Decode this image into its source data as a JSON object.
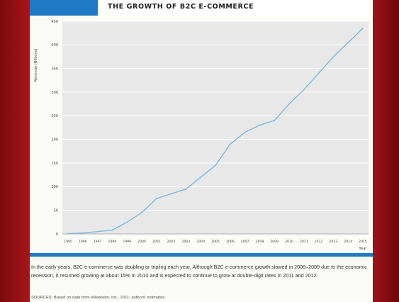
{
  "slide": {
    "colors": {
      "background": "#5c0508",
      "band": "#a8151a",
      "accent_blue": "#1f79c4",
      "plot_background": "#e8e8e8",
      "line": "#7ab8e0"
    }
  },
  "header": {
    "title": "THE GROWTH OF B2C E-COMMERCE"
  },
  "chart_data": {
    "type": "line",
    "title": "THE GROWTH OF B2C E-COMMERCE",
    "xlabel": "Year",
    "ylabel": "Revenue (Billions)",
    "ylim": [
      0,
      450
    ],
    "yticks": [
      0,
      50,
      100,
      150,
      200,
      250,
      300,
      350,
      400,
      450
    ],
    "xlim": [
      1995,
      2015
    ],
    "x": [
      1995,
      1996,
      1997,
      1998,
      1999,
      2000,
      2001,
      2002,
      2003,
      2004,
      2005,
      2006,
      2007,
      2008,
      2009,
      2010,
      2011,
      2012,
      2013,
      2014,
      2015
    ],
    "grid": true,
    "series": [
      {
        "values": [
          0.5,
          2,
          5,
          8,
          25,
          45,
          75,
          85,
          95,
          120,
          145,
          190,
          215,
          230,
          240,
          275,
          305,
          340,
          375,
          405,
          435
        ]
      }
    ]
  },
  "caption": {
    "text": "In the early years, B2C e-commerce was doubling or tripling each year. Although B2C e-commerce growth slowed in 2008–2009 due to the economic recession, it resumed growing at about 15% in 2010 and is expected to continue to grow at double-digit rates in 2011 and 2012.",
    "source": "SOURCES: Based on data from eMarketer, Inc., 2011; authors' estimates."
  }
}
